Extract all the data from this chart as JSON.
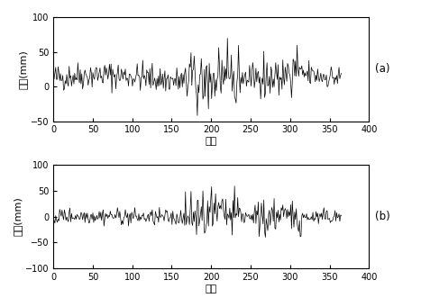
{
  "seed": 42,
  "n_points": 365,
  "xlabel": "天数",
  "ylabel": "残差(mm)",
  "label_a": "(a)",
  "label_b": "(b)",
  "xlim": [
    0,
    400
  ],
  "ylim_a": [
    -50,
    100
  ],
  "ylim_b": [
    -100,
    100
  ],
  "yticks_a": [
    -50,
    0,
    50,
    100
  ],
  "yticks_b": [
    -100,
    -50,
    0,
    50,
    100
  ],
  "xticks": [
    0,
    50,
    100,
    150,
    200,
    250,
    300,
    350,
    400
  ],
  "line_color": "#000000",
  "line_width": 0.5,
  "bg_color": "#ffffff",
  "tick_label_fontsize": 7,
  "axis_label_fontsize": 8
}
